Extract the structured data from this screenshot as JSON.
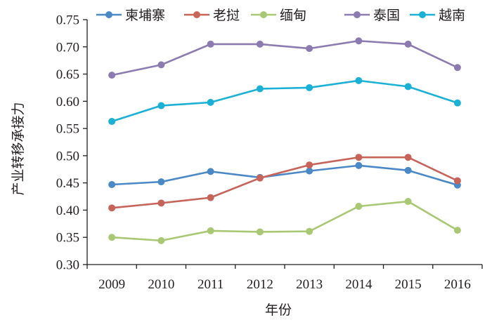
{
  "chart_data": {
    "type": "line",
    "title": "",
    "xlabel": "年份",
    "ylabel": "产业转移承接力",
    "categories": [
      "2009",
      "2010",
      "2011",
      "2012",
      "2013",
      "2014",
      "2015",
      "2016"
    ],
    "ylim": [
      0.3,
      0.75
    ],
    "yticks": [
      "0.30",
      "0.35",
      "0.40",
      "0.45",
      "0.50",
      "0.55",
      "0.60",
      "0.65",
      "0.70",
      "0.75"
    ],
    "grid": false,
    "legend_position": "top",
    "series": [
      {
        "name": "柬埔寨",
        "color": "#4a88c6",
        "values": [
          0.447,
          0.452,
          0.471,
          0.46,
          0.472,
          0.482,
          0.473,
          0.446
        ]
      },
      {
        "name": "老挝",
        "color": "#c6645a",
        "values": [
          0.404,
          0.413,
          0.423,
          0.459,
          0.483,
          0.497,
          0.497,
          0.454
        ]
      },
      {
        "name": "缅甸",
        "color": "#a9c873",
        "values": [
          0.35,
          0.344,
          0.362,
          0.36,
          0.361,
          0.407,
          0.416,
          0.363
        ]
      },
      {
        "name": "泰国",
        "color": "#8b7bb0",
        "values": [
          0.648,
          0.667,
          0.705,
          0.705,
          0.697,
          0.711,
          0.705,
          0.662
        ]
      },
      {
        "name": "越南",
        "color": "#1bb0d6",
        "values": [
          0.563,
          0.592,
          0.598,
          0.623,
          0.625,
          0.638,
          0.627,
          0.597
        ]
      }
    ]
  }
}
